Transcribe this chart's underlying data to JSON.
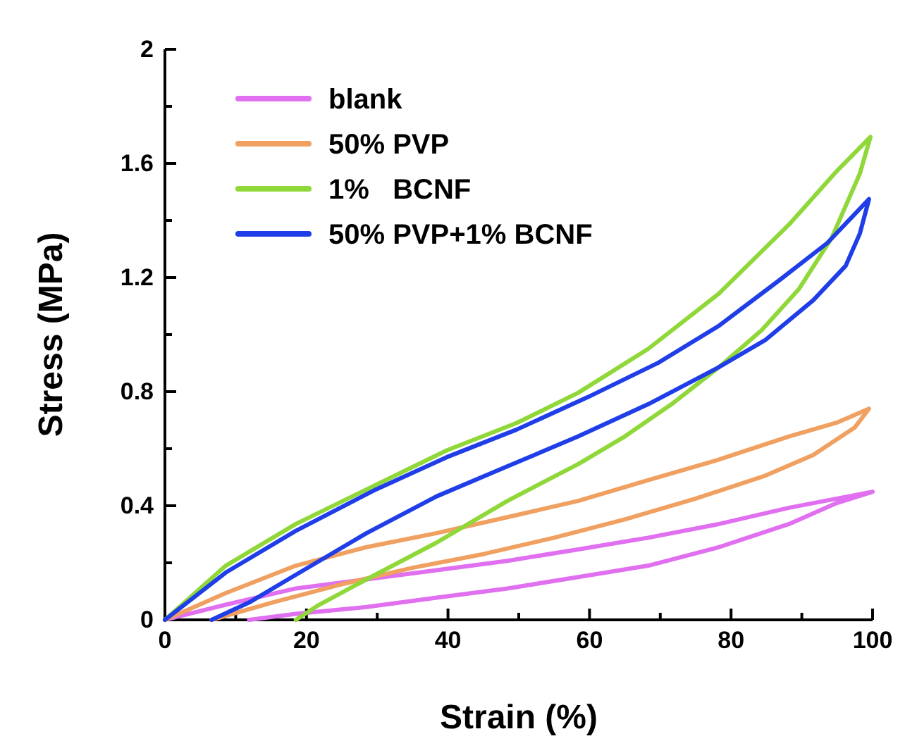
{
  "chart_data": {
    "type": "line",
    "xlabel": "Strain (%)",
    "ylabel": "Stress (MPa)",
    "xlim": [
      0,
      100
    ],
    "ylim": [
      0,
      2
    ],
    "xticks": [
      0,
      {
        "value": 10,
        "label": null
      },
      20,
      {
        "value": 30,
        "label": null
      },
      40,
      {
        "value": 50,
        "label": null
      },
      60,
      {
        "value": 70,
        "label": null
      },
      80,
      {
        "value": 90,
        "label": null
      },
      100
    ],
    "yticks": [
      0,
      {
        "value": 0.2,
        "label": null
      },
      0.4,
      {
        "value": 0.6,
        "label": null
      },
      0.8,
      {
        "value": 1.0,
        "label": null
      },
      1.2,
      {
        "value": 1.4,
        "label": null
      },
      1.6,
      {
        "value": 1.8,
        "label": null
      },
      2
    ],
    "legend": "top left",
    "grid": false,
    "marker": "none",
    "line_style": "solid",
    "series": [
      {
        "name": "blank",
        "color": "#e070f0",
        "x": [
          0,
          8.6,
          18.5,
          28.5,
          38.4,
          48.4,
          58.4,
          68.3,
          78.3,
          88.2,
          100,
          94.9,
          88.2,
          78.3,
          68.3,
          58.4,
          48.4,
          38.4,
          28.5,
          18.5,
          11.9
        ],
        "values": [
          0,
          0.053,
          0.11,
          0.142,
          0.174,
          0.207,
          0.247,
          0.288,
          0.336,
          0.393,
          0.449,
          0.409,
          0.336,
          0.255,
          0.19,
          0.15,
          0.11,
          0.078,
          0.045,
          0.021,
          0
        ]
      },
      {
        "name": "50% PVP",
        "color": "#f0a060",
        "x": [
          0,
          8.6,
          18.5,
          28.5,
          38.4,
          48.4,
          58.4,
          68.3,
          78.3,
          88.2,
          94.9,
          99.5,
          97.5,
          91.6,
          84.9,
          75,
          65,
          55,
          45.1,
          35.1,
          25.2,
          15.2,
          6.6
        ],
        "values": [
          0,
          0.094,
          0.19,
          0.255,
          0.304,
          0.36,
          0.417,
          0.49,
          0.562,
          0.643,
          0.691,
          0.74,
          0.675,
          0.578,
          0.506,
          0.425,
          0.352,
          0.288,
          0.231,
          0.183,
          0.126,
          0.061,
          0
        ]
      },
      {
        "name": "1%   BCNF",
        "color": "#90d83a",
        "x": [
          0,
          8.6,
          18.5,
          29.8,
          39.8,
          49.7,
          58.4,
          68.3,
          78.3,
          88.2,
          94.9,
          99.7,
          98.2,
          94.2,
          89.6,
          84.3,
          78.3,
          71.6,
          65,
          58.4,
          48.4,
          38.4,
          28.5,
          21.8,
          18.5
        ],
        "values": [
          0,
          0.19,
          0.336,
          0.473,
          0.594,
          0.69,
          0.796,
          0.95,
          1.144,
          1.386,
          1.572,
          1.693,
          1.564,
          1.338,
          1.16,
          1.015,
          0.886,
          0.756,
          0.643,
          0.546,
          0.417,
          0.271,
          0.142,
          0.053,
          0
        ]
      },
      {
        "name": "50% PVP+1% BCNF",
        "color": "#1f3ee8",
        "x": [
          0,
          8.6,
          18.5,
          29.8,
          39.8,
          49.7,
          59.7,
          69.7,
          78.3,
          86.9,
          93.6,
          99.5,
          98.2,
          96.2,
          91.6,
          84.9,
          78.3,
          68.3,
          58.4,
          48.4,
          38.4,
          28.5,
          18.5,
          11.9,
          6.6
        ],
        "values": [
          0,
          0.166,
          0.312,
          0.457,
          0.57,
          0.667,
          0.78,
          0.901,
          1.031,
          1.192,
          1.321,
          1.475,
          1.354,
          1.241,
          1.12,
          0.982,
          0.886,
          0.756,
          0.643,
          0.538,
          0.433,
          0.304,
          0.158,
          0.061,
          0
        ]
      }
    ]
  }
}
